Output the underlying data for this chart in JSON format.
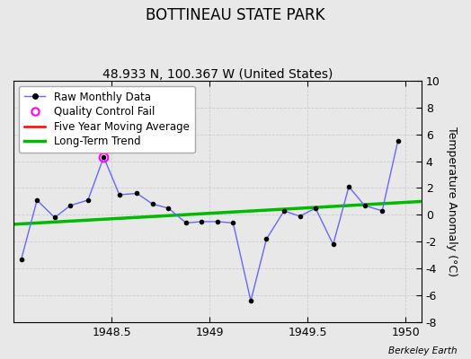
{
  "title": "BOTTINEAU STATE PARK",
  "subtitle": "48.933 N, 100.367 W (United States)",
  "ylabel": "Temperature Anomaly (°C)",
  "watermark": "Berkeley Earth",
  "background_color": "#e8e8e8",
  "plot_bg_color": "#e8e8e8",
  "xlim": [
    1948.0,
    1950.08
  ],
  "ylim": [
    -8,
    10
  ],
  "yticks": [
    -8,
    -6,
    -4,
    -2,
    0,
    2,
    4,
    6,
    8,
    10
  ],
  "xticks": [
    1948.5,
    1949.0,
    1949.5,
    1950.0
  ],
  "raw_x": [
    1948.04,
    1948.12,
    1948.21,
    1948.29,
    1948.38,
    1948.46,
    1948.54,
    1948.63,
    1948.71,
    1948.79,
    1948.88,
    1948.96,
    1949.04,
    1949.12,
    1949.21,
    1949.29,
    1949.38,
    1949.46,
    1949.54,
    1949.63,
    1949.71,
    1949.79,
    1949.88,
    1949.96
  ],
  "raw_y": [
    -3.3,
    1.1,
    -0.2,
    0.7,
    1.1,
    4.3,
    1.5,
    1.6,
    0.8,
    0.5,
    -0.6,
    -0.5,
    -0.5,
    -0.6,
    -6.4,
    -1.8,
    0.3,
    -0.1,
    0.5,
    -2.2,
    2.1,
    0.7,
    0.3,
    5.5
  ],
  "qc_fail_x": [
    1948.46
  ],
  "qc_fail_y": [
    4.3
  ],
  "trend_x": [
    1948.0,
    1950.08
  ],
  "trend_y": [
    -0.7,
    1.0
  ],
  "raw_line_color": "#6666ff",
  "raw_marker_color": "#000000",
  "qc_color": "#ff00ff",
  "moving_avg_color": "#ff0000",
  "trend_color": "#00bb00",
  "title_fontsize": 12,
  "subtitle_fontsize": 10,
  "ylabel_fontsize": 9,
  "legend_fontsize": 8.5,
  "tick_fontsize": 9
}
